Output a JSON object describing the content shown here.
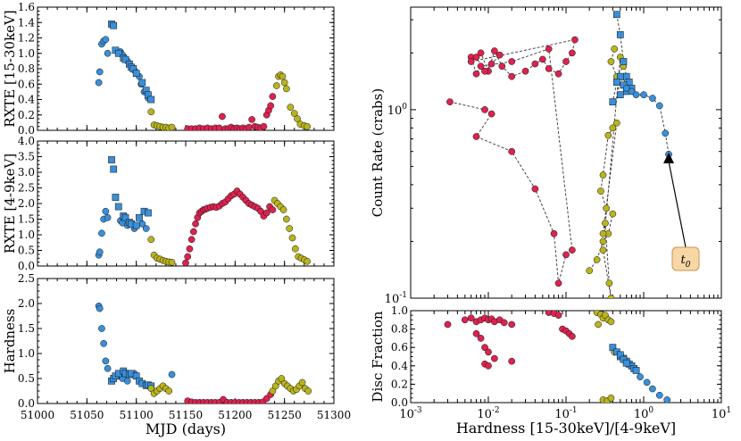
{
  "colors": {
    "blue": "#3a8fd9",
    "red": "#dc2350",
    "yellow": "#b9b41e",
    "box_fill": "#f7d7a6",
    "box_stroke": "#c89450"
  },
  "chart_data": [
    {
      "id": "p1",
      "type": "scatter",
      "ylabel": "RXTE [15-30keV]",
      "xlim": [
        51000,
        51300
      ],
      "ylim": [
        0,
        1.6
      ],
      "yticks": [
        "0.0",
        "0.2",
        "0.4",
        "0.6",
        "0.8",
        "1.0",
        "1.2",
        "1.4",
        "1.6"
      ],
      "series": [
        {
          "color": "blue",
          "marker": "circle",
          "x": [
            51062,
            51063,
            51065,
            51067,
            51069,
            51071,
            51084,
            51086,
            51091,
            51098,
            51103,
            51105,
            51108,
            51112
          ],
          "y": [
            0.62,
            0.76,
            1.12,
            1.16,
            1.18,
            1.0,
            1.02,
            0.98,
            0.9,
            0.78,
            0.7,
            0.6,
            0.5,
            0.42
          ]
        },
        {
          "color": "blue",
          "marker": "square",
          "x": [
            51075,
            51077,
            51079,
            51082,
            51087,
            51089,
            51093,
            51095,
            51097,
            51100,
            51106,
            51110,
            51112,
            51115
          ],
          "y": [
            1.38,
            1.36,
            1.04,
            1.0,
            0.94,
            0.92,
            0.86,
            0.82,
            0.8,
            0.74,
            0.62,
            0.52,
            0.46,
            0.4
          ]
        },
        {
          "color": "yellow",
          "marker": "circle",
          "x": [
            51115,
            51118,
            51121,
            51124,
            51127,
            51130,
            51133,
            51136
          ],
          "y": [
            0.24,
            0.07,
            0.06,
            0.05,
            0.04,
            0.04,
            0.03,
            0.04
          ]
        },
        {
          "color": "red",
          "marker": "circle",
          "x": [
            51152,
            51156,
            51160,
            51164,
            51168,
            51172,
            51176,
            51180,
            51184,
            51187,
            51190,
            51193,
            51196,
            51199,
            51202,
            51205,
            51208,
            51211,
            51214,
            51217,
            51220,
            51223,
            51226,
            51229,
            51232,
            51234,
            51236,
            51238
          ],
          "y": [
            0.02,
            0.02,
            0.02,
            0.03,
            0.02,
            0.03,
            0.02,
            0.03,
            0.03,
            0.18,
            0.02,
            0.02,
            0.04,
            0.02,
            0.03,
            0.02,
            0.03,
            0.02,
            0.04,
            0.14,
            0.05,
            0.04,
            0.03,
            0.05,
            0.2,
            0.26,
            0.32,
            0.44
          ]
        },
        {
          "color": "yellow",
          "marker": "circle",
          "x": [
            51242,
            51244,
            51246,
            51248,
            51250,
            51252,
            51256,
            51260,
            51263,
            51266,
            51270,
            51273
          ],
          "y": [
            0.58,
            0.7,
            0.72,
            0.7,
            0.62,
            0.54,
            0.3,
            0.22,
            0.15,
            0.08,
            0.06,
            0.05
          ]
        }
      ]
    },
    {
      "id": "p2",
      "type": "scatter",
      "ylabel": "RXTE [4-9keV]",
      "xlim": [
        51000,
        51300
      ],
      "ylim": [
        0,
        4.0
      ],
      "yticks": [
        "0.0",
        "0.5",
        "1.0",
        "1.5",
        "2.0",
        "2.5",
        "3.0",
        "3.5",
        "4.0"
      ],
      "series": [
        {
          "color": "blue",
          "marker": "circle",
          "x": [
            51062,
            51063,
            51065,
            51067,
            51069,
            51071,
            51084,
            51086,
            51091,
            51098,
            51106,
            51110
          ],
          "y": [
            0.35,
            0.45,
            1.05,
            1.5,
            1.75,
            1.55,
            1.45,
            1.38,
            1.3,
            1.2,
            1.35,
            1.2
          ]
        },
        {
          "color": "blue",
          "marker": "square",
          "x": [
            51075,
            51077,
            51079,
            51082,
            51087,
            51089,
            51093,
            51095,
            51100,
            51103,
            51108,
            51112
          ],
          "y": [
            3.4,
            3.1,
            2.2,
            1.9,
            1.6,
            1.55,
            1.4,
            1.35,
            1.3,
            1.55,
            1.75,
            1.7
          ]
        },
        {
          "color": "yellow",
          "marker": "circle",
          "x": [
            51115,
            51118,
            51121,
            51124,
            51127,
            51130,
            51133,
            51136
          ],
          "y": [
            0.85,
            0.35,
            0.25,
            0.22,
            0.18,
            0.15,
            0.13,
            0.12
          ]
        },
        {
          "color": "red",
          "marker": "circle",
          "x": [
            51150,
            51152,
            51154,
            51156,
            51158,
            51160,
            51162,
            51164,
            51166,
            51168,
            51170,
            51172,
            51175,
            51178,
            51181,
            51184,
            51187,
            51190,
            51193,
            51196,
            51199,
            51202,
            51205,
            51208,
            51211,
            51214,
            51217,
            51220,
            51223,
            51226,
            51229,
            51232,
            51235,
            51238
          ],
          "y": [
            0.1,
            0.3,
            0.55,
            0.85,
            1.1,
            1.35,
            1.55,
            1.7,
            1.75,
            1.8,
            1.82,
            1.85,
            1.88,
            1.9,
            1.88,
            1.92,
            2.0,
            2.05,
            2.15,
            2.25,
            2.3,
            2.4,
            2.3,
            2.2,
            2.1,
            2.0,
            1.95,
            1.9,
            1.85,
            1.75,
            1.6,
            1.7,
            1.9,
            1.8
          ]
        },
        {
          "color": "yellow",
          "marker": "circle",
          "x": [
            51240,
            51243,
            51246,
            51249,
            51252,
            51255,
            51258,
            51261,
            51264,
            51267,
            51270,
            51273
          ],
          "y": [
            2.1,
            2.0,
            1.9,
            1.8,
            1.5,
            1.2,
            0.9,
            0.55,
            0.3,
            0.25,
            0.2,
            0.15
          ]
        }
      ]
    },
    {
      "id": "p3",
      "type": "scatter",
      "ylabel": "Hardness",
      "xlabel": "MJD (days)",
      "xlim": [
        51000,
        51300
      ],
      "ylim": [
        0,
        2.5
      ],
      "yticks": [
        "0.0",
        "0.5",
        "1.0",
        "1.5",
        "2.0",
        "2.5"
      ],
      "xticks": [
        "51000",
        "51050",
        "51100",
        "51150",
        "51200",
        "51250",
        "51300"
      ],
      "series": [
        {
          "color": "blue",
          "marker": "circle",
          "x": [
            51062,
            51063,
            51065,
            51067,
            51069,
            51071,
            51084,
            51086,
            51091,
            51098,
            51136
          ],
          "y": [
            1.95,
            1.9,
            1.5,
            1.2,
            0.85,
            0.7,
            0.55,
            0.5,
            0.45,
            0.6,
            0.58
          ]
        },
        {
          "color": "blue",
          "marker": "square",
          "x": [
            51075,
            51077,
            51079,
            51082,
            51087,
            51089,
            51093,
            51095,
            51100,
            51103,
            51106,
            51110,
            51112,
            51115
          ],
          "y": [
            0.45,
            0.5,
            0.55,
            0.6,
            0.65,
            0.6,
            0.58,
            0.6,
            0.55,
            0.45,
            0.4,
            0.36,
            0.37,
            0.35
          ]
        },
        {
          "color": "yellow",
          "marker": "circle",
          "x": [
            51115,
            51118,
            51121,
            51124,
            51127,
            51130,
            51133
          ],
          "y": [
            0.3,
            0.2,
            0.25,
            0.3,
            0.35,
            0.3,
            0.25
          ]
        },
        {
          "color": "red",
          "marker": "circle",
          "x": [
            51152,
            51156,
            51160,
            51164,
            51168,
            51172,
            51176,
            51180,
            51184,
            51188,
            51192,
            51196,
            51200,
            51204,
            51208,
            51212,
            51216,
            51220,
            51224,
            51228,
            51232,
            51236
          ],
          "y": [
            0.05,
            0.03,
            0.02,
            0.02,
            0.02,
            0.02,
            0.02,
            0.02,
            0.02,
            0.08,
            0.02,
            0.02,
            0.02,
            0.02,
            0.02,
            0.02,
            0.02,
            0.02,
            0.02,
            0.03,
            0.1,
            0.18
          ]
        },
        {
          "color": "yellow",
          "marker": "circle",
          "x": [
            51238,
            51241,
            51244,
            51247,
            51250,
            51253,
            51256,
            51259,
            51262,
            51265,
            51268,
            51271,
            51274
          ],
          "y": [
            0.25,
            0.35,
            0.45,
            0.5,
            0.4,
            0.35,
            0.3,
            0.25,
            0.28,
            0.35,
            0.42,
            0.3,
            0.25
          ]
        }
      ]
    },
    {
      "id": "p4",
      "type": "line",
      "ylabel": "Count Rate (crabs)",
      "xlim": [
        0.001,
        10
      ],
      "ylim": [
        0.1,
        3.5
      ],
      "xscale": "log",
      "yscale": "log",
      "yticks": [
        "10^-1",
        "10^0"
      ],
      "annotation": "t0",
      "annotation_point": [
        2.1,
        0.58
      ],
      "series": [
        {
          "color": "red",
          "marker": "circle",
          "x": [
            0.0032,
            0.009,
            0.011,
            0.007,
            0.02,
            0.04,
            0.07,
            0.08,
            0.1,
            0.12,
            0.06,
            0.02,
            0.008,
            0.007,
            0.006,
            0.008,
            0.01,
            0.012,
            0.015,
            0.02,
            0.03,
            0.04,
            0.05,
            0.06,
            0.08,
            0.1,
            0.12,
            0.13,
            0.006,
            0.007,
            0.009,
            0.011,
            0.014
          ],
          "y": [
            1.1,
            1.0,
            0.95,
            0.72,
            0.6,
            0.38,
            0.22,
            0.12,
            0.17,
            0.18,
            2.1,
            1.8,
            1.7,
            1.55,
            1.9,
            2.0,
            1.6,
            2.05,
            1.7,
            1.5,
            1.6,
            1.75,
            1.85,
            1.65,
            1.55,
            1.8,
            2.0,
            2.35,
            1.8,
            1.9,
            1.6,
            1.75,
            1.95
          ]
        },
        {
          "color": "yellow",
          "marker": "circle",
          "x": [
            0.2,
            0.25,
            0.3,
            0.35,
            0.4,
            0.33,
            0.28,
            0.3,
            0.35,
            0.4,
            0.45,
            0.3,
            0.32,
            0.36,
            0.38,
            0.3,
            0.5,
            0.55,
            0.45,
            0.38,
            0.42
          ],
          "y": [
            0.14,
            0.16,
            0.2,
            0.22,
            0.28,
            0.3,
            0.37,
            0.45,
            0.73,
            0.8,
            0.85,
            0.22,
            0.25,
            0.12,
            0.1,
            0.18,
            1.9,
            1.7,
            1.5,
            1.8,
            2.1
          ]
        },
        {
          "color": "blue",
          "marker": "square",
          "x": [
            0.45,
            0.5,
            0.55,
            0.6,
            0.65,
            0.7,
            0.5,
            0.55,
            0.6,
            0.5,
            0.45,
            0.4
          ],
          "y": [
            3.2,
            2.5,
            1.8,
            1.5,
            1.4,
            1.3,
            1.5,
            1.35,
            1.25,
            1.2,
            1.4,
            1.1
          ]
        },
        {
          "color": "blue",
          "marker": "circle",
          "x": [
            0.6,
            0.7,
            0.8,
            1.0,
            1.3,
            1.6,
            1.9,
            2.1
          ],
          "y": [
            1.3,
            1.25,
            1.2,
            1.2,
            1.15,
            1.05,
            0.75,
            0.58
          ]
        }
      ]
    },
    {
      "id": "p5",
      "type": "scatter",
      "ylabel": "Disc Fraction",
      "xlabel": "Hardness [15-30keV]/[4-9keV]",
      "xlim": [
        0.001,
        10
      ],
      "ylim": [
        0,
        1.0
      ],
      "xscale": "log",
      "yticks": [
        "0.0",
        "0.2",
        "0.4",
        "0.6",
        "0.8",
        "1.0"
      ],
      "xticks": [
        "10^-3",
        "10^-2",
        "10^-1",
        "10^0",
        "10^1"
      ],
      "series": [
        {
          "color": "red",
          "marker": "circle",
          "x": [
            0.003,
            0.005,
            0.006,
            0.007,
            0.008,
            0.009,
            0.01,
            0.011,
            0.012,
            0.014,
            0.016,
            0.02,
            0.007,
            0.008,
            0.009,
            0.01,
            0.012,
            0.02,
            0.06,
            0.07,
            0.08,
            0.09,
            0.1,
            0.11,
            0.12,
            0.009,
            0.01
          ],
          "y": [
            0.85,
            0.9,
            0.92,
            0.88,
            0.9,
            0.92,
            0.9,
            0.91,
            0.88,
            0.9,
            0.87,
            0.85,
            0.75,
            0.7,
            0.6,
            0.55,
            0.48,
            0.45,
            0.98,
            0.97,
            0.95,
            0.8,
            0.78,
            0.75,
            0.72,
            0.42,
            0.4
          ]
        },
        {
          "color": "yellow",
          "marker": "circle",
          "x": [
            0.25,
            0.28,
            0.3,
            0.32,
            0.35,
            0.38,
            0.4,
            0.42,
            0.26,
            0.3,
            0.34,
            0.38
          ],
          "y": [
            0.98,
            0.96,
            0.92,
            0.95,
            0.9,
            0.88,
            0.6,
            0.55,
            0.85,
            0.03,
            0.02,
            0.05
          ]
        },
        {
          "color": "blue",
          "marker": "square",
          "x": [
            0.4,
            0.45,
            0.5,
            0.55,
            0.6,
            0.65,
            0.7,
            0.75,
            0.8,
            0.5,
            0.55,
            0.6
          ],
          "y": [
            0.6,
            0.55,
            0.5,
            0.48,
            0.45,
            0.42,
            0.4,
            0.37,
            0.35,
            0.52,
            0.47,
            0.43
          ]
        },
        {
          "color": "blue",
          "marker": "circle",
          "x": [
            0.9,
            1.1,
            1.3,
            1.6,
            2.0
          ],
          "y": [
            0.28,
            0.22,
            0.15,
            0.08,
            0.03
          ]
        }
      ]
    }
  ]
}
